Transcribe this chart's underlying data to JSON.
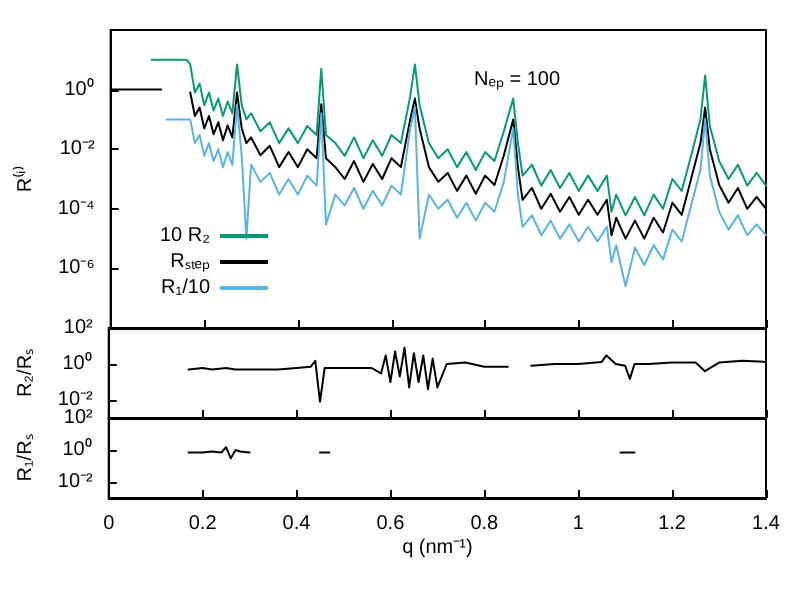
{
  "chart_data": [
    {
      "type": "line",
      "ylabel": "R⁽ⁱ⁾",
      "log": "y",
      "grid": false,
      "marker": "none",
      "line_style": "solid",
      "legend": "bottom left",
      "tick_labels": "y",
      "xlim": [
        0,
        1.4
      ],
      "xticks": [
        0,
        0.2,
        0.4,
        0.6,
        0.8,
        1,
        1.2,
        1.4
      ],
      "ylim": [
        1e-08,
        100
      ],
      "yticks": [
        {
          "value": 1,
          "label": "10⁰"
        },
        {
          "value": 0.01,
          "label": "10⁻²"
        },
        {
          "value": 0.0001,
          "label": "10⁻⁴"
        },
        {
          "value": 1e-06,
          "label": "10⁻⁶"
        }
      ],
      "annotations": [
        "Nₑₚ = 100"
      ],
      "series": [
        {
          "name": "10 R₂",
          "color": "#009e73",
          "x": [
            0.0875,
            0.1625,
            0.17,
            0.18,
            0.19,
            0.2,
            0.21,
            0.22,
            0.23,
            0.24,
            0.25,
            0.26,
            0.27,
            0.28,
            0.29,
            0.3,
            0.32,
            0.34,
            0.36,
            0.38,
            0.4,
            0.42,
            0.44,
            0.45,
            0.46,
            0.48,
            0.5,
            0.52,
            0.54,
            0.56,
            0.58,
            0.6,
            0.62,
            0.64,
            0.65,
            0.66,
            0.68,
            0.7,
            0.72,
            0.74,
            0.76,
            0.78,
            0.8,
            0.82,
            0.84,
            0.86,
            0.87,
            0.88,
            0.9,
            0.92,
            0.94,
            0.96,
            0.98,
            1.0,
            1.02,
            1.04,
            1.06,
            1.07,
            1.08,
            1.1,
            1.12,
            1.14,
            1.16,
            1.18,
            1.2,
            1.22,
            1.24,
            1.26,
            1.27,
            1.28,
            1.3,
            1.32,
            1.34,
            1.36,
            1.38,
            1.4
          ],
          "values": [
            10,
            10,
            7,
            0.8,
            1.6,
            0.3,
            0.8,
            0.2,
            0.5,
            0.13,
            0.4,
            0.16,
            7,
            0.3,
            0.1,
            0.16,
            0.04,
            0.08,
            0.016,
            0.05,
            0.016,
            0.06,
            0.03,
            5,
            0.03,
            0.016,
            0.006,
            0.025,
            0.005,
            0.02,
            0.006,
            0.03,
            0.016,
            0.6,
            7,
            0.3,
            0.016,
            0.005,
            0.01,
            0.0025,
            0.008,
            0.002,
            0.008,
            0.004,
            0.04,
            0.5,
            0.016,
            0.0013,
            0.003,
            0.0006,
            0.002,
            0.0005,
            0.0016,
            0.0004,
            0.0013,
            0.0004,
            0.0013,
            8e-05,
            0.0003,
            6e-05,
            0.00025,
            6e-05,
            0.0003,
            0.0001,
            0.001,
            0.0004,
            0.006,
            0.1,
            3,
            0.06,
            0.004,
            0.001,
            0.003,
            0.0006,
            0.0016,
            0.0006
          ]
        },
        {
          "name": "Rₛₜₑₚ",
          "color": "#000000",
          "x": [
            0,
            0.108,
            0.14,
            0.17,
            0.18,
            0.19,
            0.2,
            0.21,
            0.22,
            0.23,
            0.24,
            0.25,
            0.26,
            0.27,
            0.28,
            0.29,
            0.3,
            0.32,
            0.34,
            0.36,
            0.38,
            0.4,
            0.42,
            0.44,
            0.45,
            0.46,
            0.48,
            0.5,
            0.52,
            0.54,
            0.56,
            0.58,
            0.6,
            0.62,
            0.64,
            0.65,
            0.66,
            0.68,
            0.7,
            0.72,
            0.74,
            0.76,
            0.78,
            0.8,
            0.82,
            0.84,
            0.86,
            0.87,
            0.88,
            0.9,
            0.92,
            0.94,
            0.96,
            0.98,
            1.0,
            1.02,
            1.04,
            1.06,
            1.07,
            1.08,
            1.1,
            1.12,
            1.14,
            1.16,
            1.18,
            1.2,
            1.22,
            1.24,
            1.26,
            1.27,
            1.28,
            1.3,
            1.32,
            1.34,
            1.36,
            1.38,
            1.4
          ],
          "values": [
            1,
            1,
            null,
            0.8,
            0.13,
            0.25,
            0.05,
            0.13,
            0.032,
            0.08,
            0.02,
            0.063,
            0.025,
            0.8,
            0.05,
            0.016,
            0.025,
            0.0063,
            0.013,
            0.0025,
            0.008,
            0.0025,
            0.01,
            0.005,
            0.32,
            0.005,
            0.0025,
            0.001,
            0.004,
            0.0008,
            0.0032,
            0.001,
            0.005,
            0.0025,
            0.1,
            0.5,
            0.05,
            0.0025,
            0.0008,
            0.0016,
            0.0004,
            0.0013,
            0.00032,
            0.0013,
            0.00063,
            0.0063,
            0.1,
            0.0025,
            0.0002,
            0.0005,
            0.0001,
            0.00032,
            8e-05,
            0.00025,
            6.3e-05,
            0.0002,
            6.3e-05,
            0.0002,
            1.3e-05,
            5e-05,
            1e-05,
            4e-05,
            1e-05,
            5e-05,
            1.6e-05,
            0.00016,
            6.3e-05,
            0.001,
            0.016,
            0.25,
            0.01,
            0.00063,
            0.00016,
            0.0005,
            0.0001,
            0.00025,
            0.0001
          ]
        },
        {
          "name": "R₁/10",
          "color": "#56b4e9",
          "x": [
            0.12,
            0.165,
            0.17,
            0.18,
            0.19,
            0.2,
            0.21,
            0.22,
            0.23,
            0.24,
            0.25,
            0.26,
            0.27,
            0.28,
            0.29,
            0.3,
            0.32,
            0.34,
            0.36,
            0.38,
            0.4,
            0.42,
            0.44,
            0.45,
            0.46,
            0.48,
            0.5,
            0.52,
            0.54,
            0.56,
            0.58,
            0.6,
            0.62,
            0.64,
            0.65,
            0.66,
            0.68,
            0.7,
            0.72,
            0.74,
            0.76,
            0.78,
            0.8,
            0.82,
            0.84,
            0.86,
            0.87,
            0.88,
            0.9,
            0.92,
            0.94,
            0.96,
            0.98,
            1.0,
            1.02,
            1.04,
            1.06,
            1.07,
            1.08,
            1.1,
            1.12,
            1.14,
            1.16,
            1.18,
            1.2,
            1.22,
            1.24,
            1.26,
            1.27,
            1.28,
            1.3,
            1.32,
            1.34,
            1.36,
            1.38,
            1.4
          ],
          "values": [
            0.1,
            0.1,
            0.1,
            0.016,
            0.03,
            0.006,
            0.016,
            0.004,
            0.01,
            0.0025,
            0.008,
            0.003,
            0.3,
            0.006,
            1e-05,
            0.003,
            0.0008,
            0.0016,
            0.0003,
            0.001,
            0.0003,
            0.0013,
            0.0006,
            0.16,
            3e-05,
            0.0003,
            0.00013,
            0.0005,
            0.0001,
            0.0004,
            0.00013,
            0.0006,
            0.0003,
            0.05,
            0.25,
            1e-05,
            0.0003,
            0.0001,
            0.0002,
            5e-05,
            0.00016,
            4e-05,
            0.00016,
            8e-05,
            0.0008,
            0.05,
            0.0003,
            2.5e-05,
            6e-05,
            1.3e-05,
            4e-05,
            1e-05,
            3e-05,
            8e-06,
            2.5e-05,
            8e-06,
            2.5e-05,
            1.6e-06,
            6e-06,
            2.5e-07,
            5e-06,
            1.3e-06,
            6e-06,
            2e-06,
            2e-05,
            8e-06,
            0.00013,
            0.002,
            0.1,
            0.0013,
            8e-05,
            2e-05,
            6e-05,
            1.3e-05,
            3e-05,
            1.3e-05
          ]
        }
      ]
    },
    {
      "type": "line",
      "ylabel": "R₂/Rₛ",
      "log": "y",
      "grid": false,
      "marker": "none",
      "line_style": "solid",
      "tick_labels": "y",
      "xlim": [
        0,
        1.4
      ],
      "xticks": [
        0,
        0.2,
        0.4,
        0.6,
        0.8,
        1,
        1.2,
        1.4
      ],
      "ylim": [
        0.001,
        100
      ],
      "yticks": [
        {
          "value": 100,
          "label": "10²"
        },
        {
          "value": 1,
          "label": "10⁰"
        },
        {
          "value": 0.01,
          "label": "10⁻²"
        }
      ],
      "series": [
        {
          "color": "#000000",
          "x": [
            0.17,
            0.2,
            0.22,
            0.25,
            0.27,
            0.3,
            0.33,
            0.36,
            0.4,
            0.43,
            0.44,
            0.45,
            0.46,
            0.48,
            0.52,
            0.56,
            0.58,
            0.59,
            0.6,
            0.61,
            0.62,
            0.63,
            0.64,
            0.65,
            0.66,
            0.67,
            0.68,
            0.69,
            0.7,
            0.72,
            0.76,
            0.8,
            0.85,
            0.87,
            0.9,
            0.95,
            1.0,
            1.05,
            1.06,
            1.08,
            1.1,
            1.11,
            1.12,
            1.15,
            1.2,
            1.25,
            1.27,
            1.3,
            1.35,
            1.4
          ],
          "values": [
            0.5,
            0.6,
            0.5,
            0.6,
            0.5,
            0.5,
            0.5,
            0.5,
            0.6,
            0.7,
            1.5,
            0.008,
            0.6,
            0.6,
            0.6,
            0.6,
            0.3,
            3,
            0.1,
            5,
            0.2,
            8,
            0.05,
            4,
            0.1,
            3,
            0.04,
            2,
            0.05,
            1,
            1.2,
            0.7,
            0.7,
            null,
            0.8,
            1,
            1,
            1.3,
            3,
            1,
            0.8,
            0.15,
            1,
            1,
            1.2,
            1.2,
            0.4,
            1.2,
            1.5,
            1.3
          ]
        }
      ]
    },
    {
      "type": "line",
      "ylabel": "R₁/Rₛ",
      "xlabel": "q (nm⁻¹)",
      "log": "y",
      "grid": false,
      "marker": "none",
      "line_style": "solid",
      "xlim": [
        0,
        1.4
      ],
      "xticks": [
        0,
        0.2,
        0.4,
        0.6,
        0.8,
        1,
        1.2,
        1.4
      ],
      "ylim": [
        0.001,
        100
      ],
      "yticks": [
        {
          "value": 100,
          "label": "10²"
        },
        {
          "value": 1,
          "label": "10⁰"
        },
        {
          "value": 0.01,
          "label": "10⁻²"
        }
      ],
      "series": [
        {
          "color": "#000000",
          "x": [
            0.17,
            0.2,
            0.22,
            0.24,
            0.25,
            0.26,
            0.27,
            0.28,
            0.3,
            0.35,
            0.45,
            0.47,
            0.6,
            1.09,
            1.12
          ],
          "values": [
            0.7,
            0.7,
            0.8,
            0.7,
            1.5,
            0.3,
            1,
            0.8,
            0.7,
            null,
            0.7,
            0.7,
            null,
            0.7,
            0.7
          ]
        }
      ]
    }
  ]
}
